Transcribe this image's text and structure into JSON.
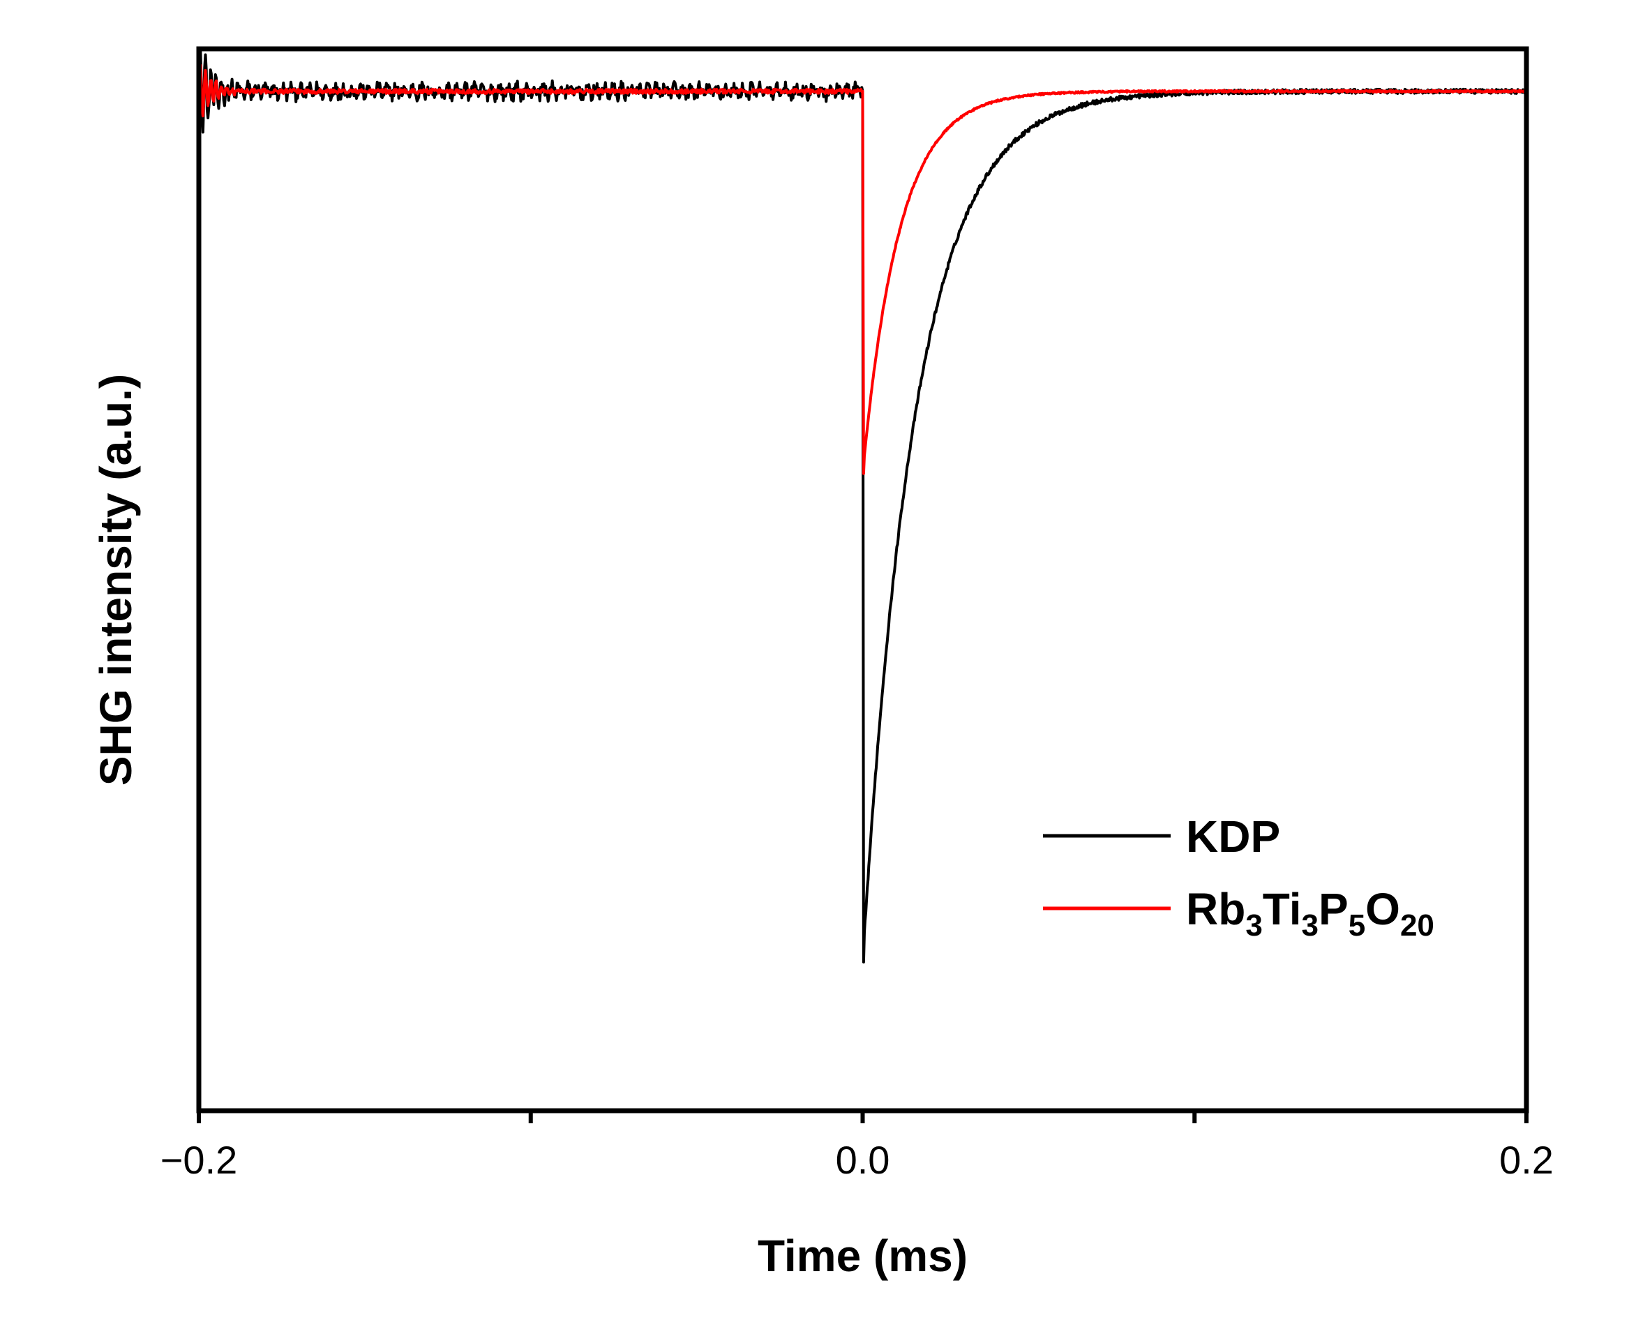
{
  "chart_data": {
    "type": "line",
    "title": "",
    "xlabel": "Time (ms)",
    "ylabel": "SHG intensity (a.u.)",
    "xlim": [
      -0.2,
      0.2
    ],
    "ylim": [
      0,
      1
    ],
    "x_ticks": [
      -0.2,
      -0.1,
      0.0,
      0.1,
      0.2
    ],
    "x_tick_labels": [
      "−0.2",
      "",
      "0.0",
      "",
      "0.2"
    ],
    "grid": false,
    "legend_position": "bottom-right",
    "series": [
      {
        "name": "KDP",
        "name_parts": [
          {
            "text": "KDP",
            "sub": false
          }
        ],
        "color": "#000000",
        "baseline": 0.96,
        "peak_x": 0.0,
        "peak_y": 0.14,
        "recovery_tau_ms": 0.016,
        "x": [
          -0.2,
          -0.194,
          -0.19,
          -0.185,
          0.0,
          0.0004,
          0.01,
          0.02,
          0.03,
          0.04,
          0.06,
          0.08,
          0.1,
          0.2
        ],
        "y": [
          0.96,
          1.0,
          0.97,
          0.96,
          0.96,
          0.14,
          0.55,
          0.76,
          0.87,
          0.92,
          0.95,
          0.96,
          0.96,
          0.96
        ]
      },
      {
        "name": "Rb3Ti3P5O20",
        "name_parts": [
          {
            "text": "Rb",
            "sub": false
          },
          {
            "text": "3",
            "sub": true
          },
          {
            "text": "Ti",
            "sub": false
          },
          {
            "text": "3",
            "sub": true
          },
          {
            "text": "P",
            "sub": false
          },
          {
            "text": "5",
            "sub": true
          },
          {
            "text": "O",
            "sub": false
          },
          {
            "text": "20",
            "sub": true
          }
        ],
        "color": "#ff0000",
        "baseline": 0.96,
        "peak_x": 0.0,
        "peak_y": 0.6,
        "recovery_tau_ms": 0.011,
        "x": [
          -0.2,
          -0.195,
          -0.19,
          0.0,
          0.0004,
          0.01,
          0.02,
          0.03,
          0.04,
          0.06,
          0.08,
          0.1,
          0.2
        ],
        "y": [
          0.96,
          0.99,
          0.96,
          0.96,
          0.6,
          0.83,
          0.92,
          0.94,
          0.95,
          0.96,
          0.96,
          0.96,
          0.96
        ]
      }
    ]
  }
}
